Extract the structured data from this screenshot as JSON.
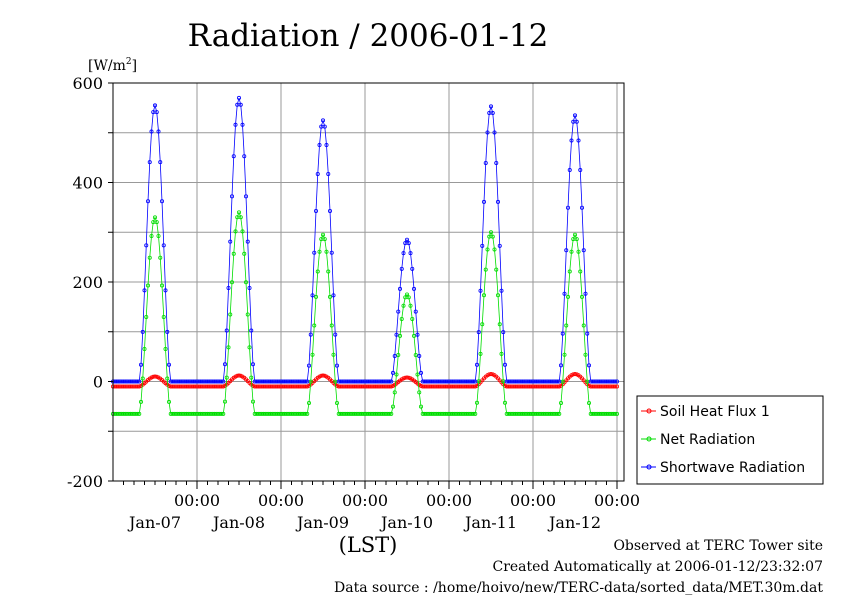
{
  "chart_data": {
    "type": "line",
    "title": "Radiation / 2006-01-12",
    "ylabel_unit_base": "[W/m",
    "ylabel_unit_sup": "2",
    "ylabel_unit_end": "]",
    "xlabel": "(LST)",
    "ylim": [
      -200,
      600
    ],
    "yticks": [
      -200,
      0,
      200,
      400,
      600
    ],
    "grid": true,
    "time_ticks": [
      {
        "time": "00:00",
        "date": "Jan-07"
      },
      {
        "time": "00:00",
        "date": "Jan-08"
      },
      {
        "time": "00:00",
        "date": "Jan-09"
      },
      {
        "time": "00:00",
        "date": "Jan-10"
      },
      {
        "time": "00:00",
        "date": "Jan-11"
      },
      {
        "time": "00:00",
        "date": "Jan-12"
      }
    ],
    "days": [
      "Jan-07",
      "Jan-08",
      "Jan-09",
      "Jan-10",
      "Jan-11",
      "Jan-12"
    ],
    "series": [
      {
        "name": "Soil Heat Flux 1",
        "color": "#ff0000",
        "night_value": -10,
        "daily_peak": [
          10,
          12,
          12,
          8,
          15,
          15
        ]
      },
      {
        "name": "Net Radiation",
        "color": "#00dd00",
        "night_value": -65,
        "daily_peak": [
          330,
          340,
          295,
          175,
          300,
          295
        ]
      },
      {
        "name": "Shortwave Radiation",
        "color": "#0000ff",
        "night_value": 0,
        "daily_peak": [
          555,
          570,
          525,
          285,
          553,
          535
        ]
      }
    ],
    "legend_position": "right",
    "footer": [
      "Observed at TERC Tower site",
      "Created Automatically at 2006-01-12/23:32:07",
      "Data source : /home/hoivo/new/TERC-data/sorted_data/MET.30m.dat"
    ]
  }
}
